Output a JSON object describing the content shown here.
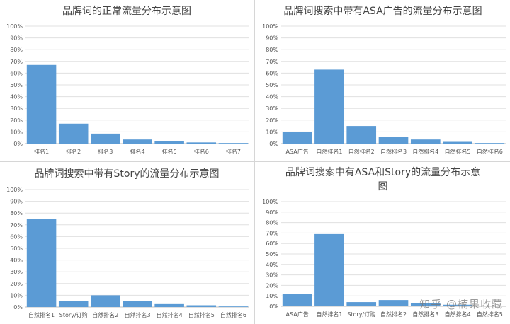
{
  "chart_data": [
    {
      "type": "bar",
      "title": "品牌词的正常流量分布示意图",
      "categories": [
        "排名1",
        "排名2",
        "排名3",
        "排名4",
        "排名5",
        "排名6",
        "排名7"
      ],
      "values": [
        67,
        17,
        8.5,
        3.5,
        2,
        1,
        0.5
      ],
      "ylim": [
        0,
        100
      ],
      "yticks": [
        "0%",
        "10%",
        "20%",
        "30%",
        "40%",
        "50%",
        "60%",
        "70%",
        "80%",
        "90%",
        "100%"
      ],
      "grid": true,
      "color": "#5b9bd5"
    },
    {
      "type": "bar",
      "title": "品牌词搜索中带有ASA广告的流量分布示意图",
      "categories": [
        "ASA广告",
        "自然排名1",
        "自然排名2",
        "自然排名3",
        "自然排名4",
        "自然排名5",
        "自然排名6"
      ],
      "values": [
        10,
        63,
        15,
        6,
        3.5,
        1.5,
        0.5
      ],
      "ylim": [
        0,
        100
      ],
      "yticks": [
        "0%",
        "10%",
        "20%",
        "30%",
        "40%",
        "50%",
        "60%",
        "70%",
        "80%",
        "90%",
        "100%"
      ],
      "grid": true,
      "color": "#5b9bd5"
    },
    {
      "type": "bar",
      "title": "品牌词搜索中带有Story的流量分布示意图",
      "categories": [
        "自然排名1",
        "Story/订购",
        "自然排名2",
        "自然排名3",
        "自然排名4",
        "自然排名5",
        "自然排名6"
      ],
      "values": [
        75,
        5,
        10,
        5,
        2.5,
        1.5,
        0.5
      ],
      "ylim": [
        0,
        100
      ],
      "yticks": [
        "0%",
        "10%",
        "20%",
        "30%",
        "40%",
        "50%",
        "60%",
        "70%",
        "80%",
        "90%",
        "100%"
      ],
      "grid": true,
      "color": "#5b9bd5"
    },
    {
      "type": "bar",
      "title": "品牌词搜索中有ASA和Story的流量分布示意",
      "title_line2": "图",
      "categories": [
        "ASA广告",
        "自然排名1",
        "Story/订购",
        "自然排名2",
        "自然排名3",
        "自然排名4",
        "自然排名5"
      ],
      "values": [
        12,
        69,
        4,
        6,
        3,
        1.5,
        0.5
      ],
      "ylim": [
        0,
        100
      ],
      "yticks": [
        "0%",
        "10%",
        "20%",
        "30%",
        "40%",
        "50%",
        "60%",
        "70%",
        "80%",
        "90%",
        "100%"
      ],
      "grid": true,
      "color": "#5b9bd5"
    }
  ],
  "watermark": "知乎 @楠果收藏"
}
